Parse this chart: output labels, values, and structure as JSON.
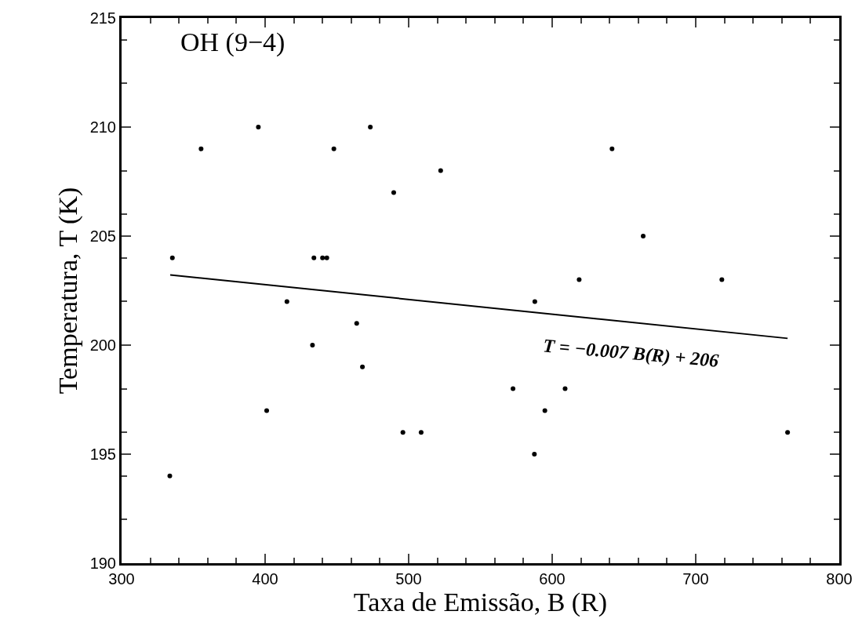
{
  "chart_data": {
    "type": "scatter",
    "xlabel": "Taxa de Emissão, B (R)",
    "ylabel": "Temperatura, T (K)",
    "annotations": [
      "OH (9−4)",
      "T = −0.007 B(R) + 206"
    ],
    "xlim": [
      300,
      800
    ],
    "xticks": [
      300,
      400,
      500,
      600,
      700,
      800
    ],
    "ylim": [
      190,
      215
    ],
    "yticks": [
      190,
      195,
      200,
      205,
      210,
      215
    ],
    "grid": false,
    "legend": false,
    "series": [
      {
        "marker": "circle",
        "color": "#000000",
        "x": [
          335.4,
          355.4,
          395.3,
          473.3,
          447.9,
          522.3,
          489.6,
          434,
          440,
          443,
          415.2,
          463.8,
          433.0,
          467.8,
          401.1,
          496.0,
          508.7,
          333.6,
          641.7,
          663.4,
          618.8,
          718.2,
          587.9,
          572.7,
          609.0,
          594.9,
          587.6,
          764.0
        ],
        "values": [
          204,
          209,
          210,
          210,
          209,
          208,
          207,
          204,
          204,
          204,
          202,
          201,
          200,
          199,
          197,
          196,
          196,
          194,
          209,
          205,
          203,
          203,
          202,
          198,
          198,
          197,
          195,
          196
        ]
      },
      {
        "type": "line",
        "color": "#000000",
        "x": [
          333.9,
          764.0
        ],
        "values": [
          203.22,
          200.31
        ]
      }
    ]
  }
}
